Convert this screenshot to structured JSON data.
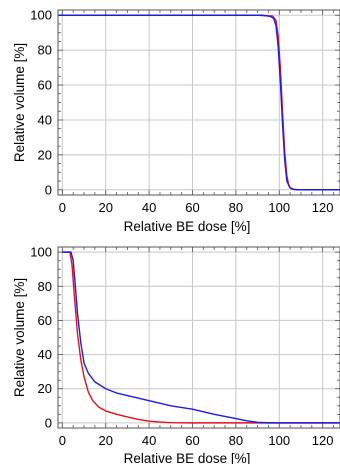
{
  "chart_data": [
    {
      "type": "line",
      "xlabel": "Relative BE dose  [%]",
      "ylabel": "Relative volume [%]",
      "xlim": [
        -2,
        128
      ],
      "ylim": [
        -3,
        103
      ],
      "xticks": [
        0,
        20,
        40,
        60,
        80,
        100,
        120
      ],
      "yticks": [
        0,
        20,
        40,
        60,
        80,
        100
      ],
      "grid": true,
      "series": [
        {
          "color": "#e3101b",
          "points": [
            [
              -2,
              100
            ],
            [
              90,
              100
            ],
            [
              97,
              99.5
            ],
            [
              98.5,
              97
            ],
            [
              99.5,
              88
            ],
            [
              100.5,
              70
            ],
            [
              101.5,
              45
            ],
            [
              102.5,
              22
            ],
            [
              103.5,
              8
            ],
            [
              104.5,
              2
            ],
            [
              106,
              0.3
            ],
            [
              108,
              0
            ],
            [
              128,
              0
            ]
          ]
        },
        {
          "color": "#1b1de0",
          "points": [
            [
              -2,
              100
            ],
            [
              92,
              100
            ],
            [
              96,
              99.3
            ],
            [
              97.5,
              98
            ],
            [
              98.5,
              94
            ],
            [
              99.5,
              82
            ],
            [
              100.5,
              62
            ],
            [
              101.5,
              38
            ],
            [
              102.5,
              17
            ],
            [
              103.5,
              5
            ],
            [
              105,
              1
            ],
            [
              107,
              0.2
            ],
            [
              109,
              0
            ],
            [
              128,
              0
            ]
          ]
        }
      ]
    },
    {
      "type": "line",
      "xlabel": "Relative BE dose [%]",
      "ylabel": "Relative volume [%]",
      "xlim": [
        -2,
        128
      ],
      "ylim": [
        -3,
        103
      ],
      "xticks": [
        0,
        20,
        40,
        60,
        80,
        100,
        120
      ],
      "yticks": [
        0,
        20,
        40,
        60,
        80,
        100
      ],
      "grid": true,
      "series": [
        {
          "color": "#e3101b",
          "points": [
            [
              0,
              100
            ],
            [
              3.5,
              100
            ],
            [
              4.5,
              92
            ],
            [
              5.5,
              75
            ],
            [
              7,
              52
            ],
            [
              8.5,
              37
            ],
            [
              10,
              27
            ],
            [
              12,
              18
            ],
            [
              14,
              13
            ],
            [
              17,
              9
            ],
            [
              20,
              7
            ],
            [
              25,
              5
            ],
            [
              30,
              3.5
            ],
            [
              35,
              2
            ],
            [
              40,
              1
            ],
            [
              45,
              0.5
            ],
            [
              50,
              0.1
            ],
            [
              60,
              0
            ],
            [
              128,
              0
            ]
          ]
        },
        {
          "color": "#1b1de0",
          "points": [
            [
              0,
              100
            ],
            [
              4,
              100
            ],
            [
              5,
              95
            ],
            [
              6,
              80
            ],
            [
              7,
              64
            ],
            [
              8.5,
              47
            ],
            [
              10,
              35
            ],
            [
              12,
              29
            ],
            [
              15,
              24
            ],
            [
              20,
              20
            ],
            [
              25,
              17.5
            ],
            [
              30,
              16
            ],
            [
              40,
              13
            ],
            [
              50,
              10
            ],
            [
              60,
              8
            ],
            [
              70,
              5
            ],
            [
              80,
              2.5
            ],
            [
              85,
              1.2
            ],
            [
              90,
              0.3
            ],
            [
              95,
              0
            ],
            [
              128,
              0
            ]
          ]
        }
      ]
    }
  ]
}
